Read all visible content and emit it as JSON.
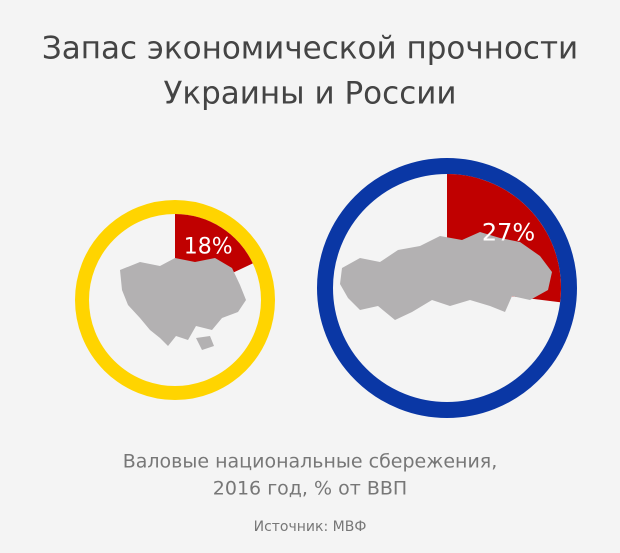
{
  "title": [
    "Запас экономической прочности",
    "Украины и России"
  ],
  "subtitle": [
    "Валовые национальные сбережения,",
    "2016 год, % от ВВП"
  ],
  "source": "Источник: МВФ",
  "chart_data": [
    {
      "type": "pie",
      "values": [
        18
      ],
      "value_labels": [
        "18%"
      ],
      "color": "#c00000",
      "ring_color": "#ffd400"
    },
    {
      "type": "pie",
      "values": [
        27
      ],
      "value_labels": [
        "27%"
      ],
      "color": "#c00000",
      "ring_color": "#0a37a5"
    }
  ]
}
